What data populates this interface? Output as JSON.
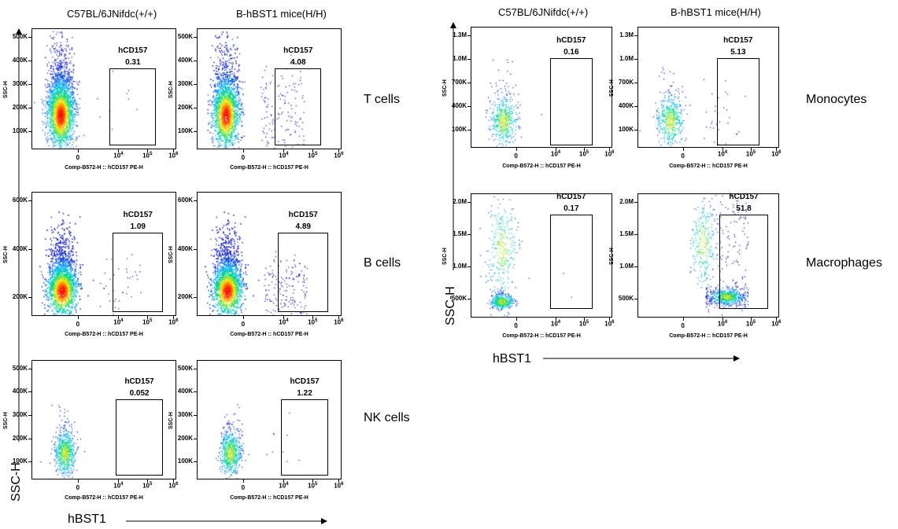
{
  "chart_data": {
    "type": "scatter",
    "column_headers": [
      "C57BL/6JNifdc(+/+)",
      "B-hBST1 mice(H/H)"
    ],
    "axis_titles": {
      "x": "hBST1",
      "y": "SSC-H"
    },
    "panel_xlabel": "Comp-B572-H :: hCD157 PE-H",
    "panel_ylabel": "SSC-H",
    "gate_name": "hCD157",
    "x_ticks": [
      "0",
      "10^4",
      "10^5",
      "10^6"
    ],
    "groups": [
      {
        "side": "left",
        "rows": [
          {
            "label": "T cells",
            "y_ticks": [
              "100K",
              "200K",
              "300K",
              "400K",
              "500K"
            ],
            "gate_values": [
              "0.31",
              "4.08"
            ]
          },
          {
            "label": "B cells",
            "y_ticks": [
              "200K",
              "400K",
              "600K"
            ],
            "gate_values": [
              "1.09",
              "4.89"
            ]
          },
          {
            "label": "NK cells",
            "y_ticks": [
              "100K",
              "200K",
              "300K",
              "400K",
              "500K"
            ],
            "gate_values": [
              "0.052",
              "1.22"
            ]
          }
        ]
      },
      {
        "side": "right",
        "rows": [
          {
            "label": "Monocytes",
            "y_ticks": [
              "100K",
              "400K",
              "700K",
              "1.0M",
              "1.3M"
            ],
            "gate_values": [
              "0.16",
              "5.13"
            ]
          },
          {
            "label": "Macrophages",
            "y_ticks": [
              "500K",
              "1.0M",
              "1.5M",
              "2.0M"
            ],
            "gate_values": [
              "0.17",
              "51.8"
            ]
          }
        ]
      }
    ]
  }
}
